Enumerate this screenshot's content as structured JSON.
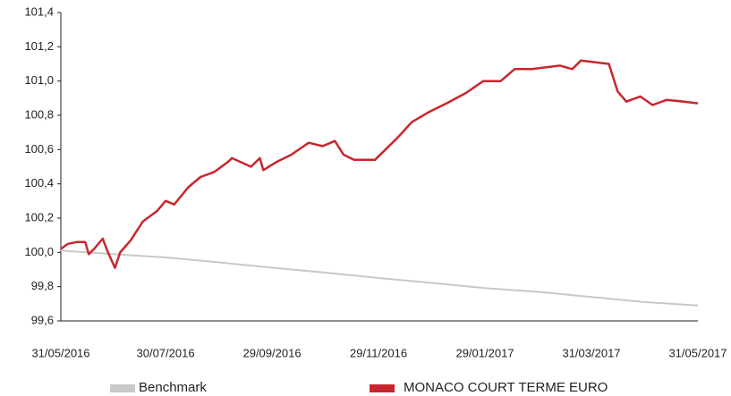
{
  "chart_data": {
    "type": "line",
    "xlim": [
      "31/05/2016",
      "31/05/2017"
    ],
    "xticks": [
      "31/05/2016",
      "30/07/2016",
      "29/09/2016",
      "29/11/2016",
      "29/01/2017",
      "31/03/2017",
      "31/05/2017"
    ],
    "ylim": [
      99.6,
      101.4
    ],
    "yticks": [
      {
        "value": 99.6,
        "label": "99,6"
      },
      {
        "value": 99.8,
        "label": "99,8"
      },
      {
        "value": 100.0,
        "label": "100,0"
      },
      {
        "value": 100.2,
        "label": "100,2"
      },
      {
        "value": 100.4,
        "label": "100,4"
      },
      {
        "value": 100.6,
        "label": "100,6"
      },
      {
        "value": 100.8,
        "label": "100,8"
      },
      {
        "value": 101.0,
        "label": "101,0"
      },
      {
        "value": 101.2,
        "label": "101,2"
      },
      {
        "value": 101.4,
        "label": "101,4"
      }
    ],
    "series": [
      {
        "name": "Benchmark",
        "color": "#c8c8c8",
        "x": [
          "31/05/2016",
          "30/06/2016",
          "31/07/2016",
          "31/08/2016",
          "30/09/2016",
          "31/10/2016",
          "30/11/2016",
          "31/12/2016",
          "31/01/2017",
          "28/02/2017",
          "31/03/2017",
          "30/04/2017",
          "31/05/2017"
        ],
        "values": [
          100.01,
          99.99,
          99.97,
          99.94,
          99.91,
          99.88,
          99.85,
          99.82,
          99.79,
          99.77,
          99.74,
          99.71,
          99.69
        ]
      },
      {
        "name": "MONACO COURT TERME EURO",
        "color": "#c8262e",
        "x": [
          "31/05/2016",
          "04/06/2016",
          "09/06/2016",
          "14/06/2016",
          "16/06/2016",
          "19/06/2016",
          "24/06/2016",
          "27/06/2016",
          "01/07/2016",
          "04/07/2016",
          "10/07/2016",
          "17/07/2016",
          "25/07/2016",
          "30/07/2016",
          "04/08/2016",
          "12/08/2016",
          "19/08/2016",
          "27/08/2016",
          "04/09/2016",
          "06/09/2016",
          "17/09/2016",
          "22/09/2016",
          "24/09/2016",
          "02/10/2016",
          "10/10/2016",
          "20/10/2016",
          "28/10/2016",
          "04/11/2016",
          "09/11/2016",
          "15/11/2016",
          "27/11/2016",
          "03/12/2016",
          "10/12/2016",
          "18/12/2016",
          "28/12/2016",
          "07/01/2017",
          "18/01/2017",
          "28/01/2017",
          "07/02/2017",
          "15/02/2017",
          "25/02/2017",
          "05/03/2017",
          "13/03/2017",
          "20/03/2017",
          "25/03/2017",
          "02/04/2017",
          "10/04/2017",
          "15/04/2017",
          "20/04/2017",
          "28/04/2017",
          "05/05/2017",
          "13/05/2017",
          "23/05/2017",
          "31/05/2017"
        ],
        "values": [
          100.02,
          100.05,
          100.06,
          100.06,
          99.99,
          100.02,
          100.08,
          100.0,
          99.91,
          100.0,
          100.07,
          100.18,
          100.24,
          100.3,
          100.28,
          100.38,
          100.44,
          100.47,
          100.53,
          100.55,
          100.5,
          100.55,
          100.48,
          100.53,
          100.57,
          100.64,
          100.62,
          100.65,
          100.57,
          100.54,
          100.54,
          100.6,
          100.67,
          100.76,
          100.82,
          100.87,
          100.93,
          101.0,
          101.0,
          101.07,
          101.07,
          101.08,
          101.09,
          101.07,
          101.12,
          101.11,
          101.1,
          100.94,
          100.88,
          100.91,
          100.86,
          100.89,
          100.88,
          100.87
        ]
      }
    ]
  }
}
